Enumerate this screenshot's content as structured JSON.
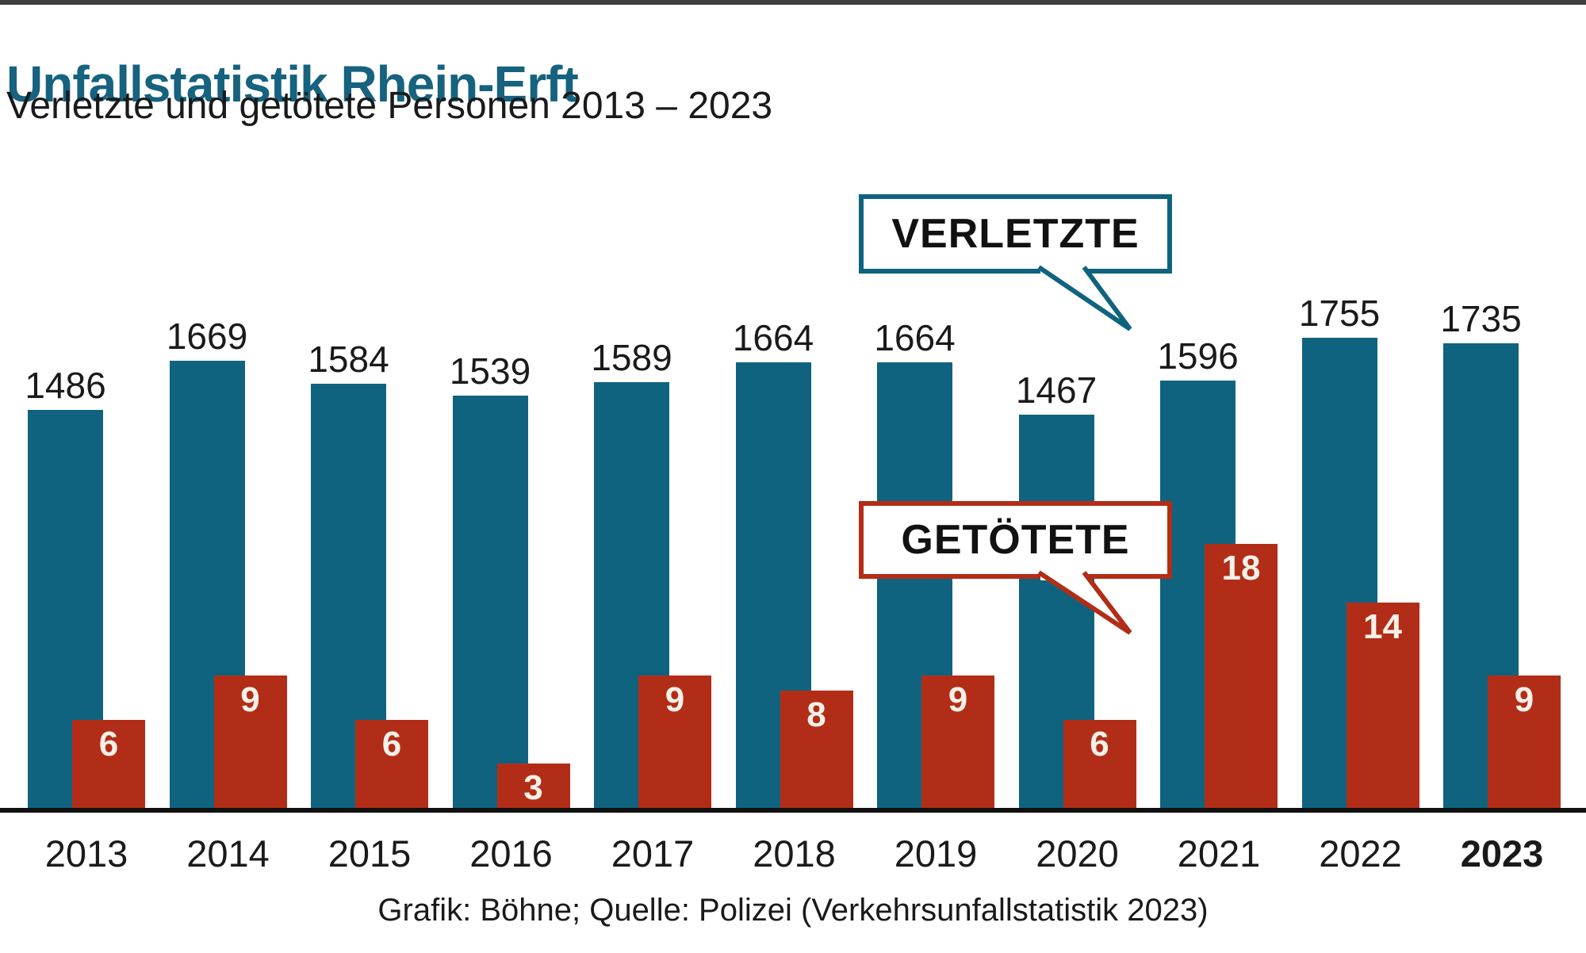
{
  "page": {
    "title": "Unfallstatistik Rhein-Erft",
    "subtitle": "Verletzte und getötete Personen 2013 – 2023",
    "source": "Grafik: Böhne; Quelle: Polizei (Verkehrsunfallstatistik 2023)"
  },
  "callouts": {
    "verletzte": "VERLETZTE",
    "getoetete": "GETÖTETE"
  },
  "colors": {
    "blue_bar": "#10637E",
    "red_bar": "#B22D17",
    "title_text": "#16627F",
    "axis": "#111111",
    "top_strip": "#3F3F3F",
    "label_on_red": "#F7F1E8",
    "body_text": "#1A1A1A"
  },
  "chart_data": {
    "type": "bar",
    "title": "Unfallstatistik Rhein-Erft",
    "subtitle": "Verletzte und getötete Personen 2013 – 2023",
    "source": "Grafik: Böhne; Quelle: Polizei (Verkehrsunfallstatistik 2023)",
    "categories": [
      "2013",
      "2014",
      "2015",
      "2016",
      "2017",
      "2018",
      "2019",
      "2020",
      "2021",
      "2022",
      "2023"
    ],
    "series": [
      {
        "name": "Verletzte",
        "color": "#10637E",
        "values": [
          1486,
          1669,
          1584,
          1539,
          1589,
          1664,
          1664,
          1467,
          1596,
          1755,
          1735
        ]
      },
      {
        "name": "Getötete",
        "color": "#B22D17",
        "values": [
          6,
          9,
          6,
          3,
          9,
          8,
          9,
          6,
          18,
          14,
          9
        ]
      }
    ],
    "bold_category": "2023",
    "grid": false,
    "value_labels": true,
    "legend_position": "speech-bubbles-in-plot",
    "xlabel": "",
    "ylabel": ""
  }
}
